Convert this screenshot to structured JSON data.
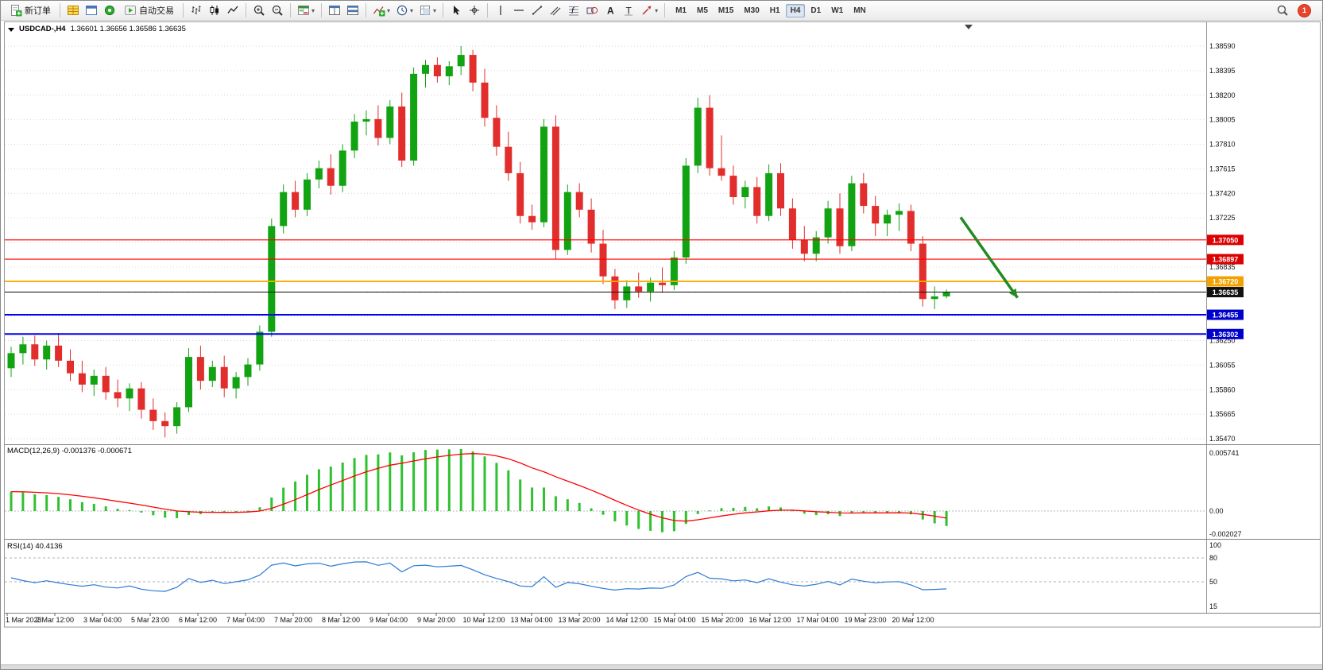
{
  "toolbar": {
    "groups": [
      {
        "items": [
          {
            "name": "new-order",
            "icon": "neworder",
            "label": "新订单"
          }
        ]
      },
      {
        "items": [
          {
            "name": "market-watch",
            "icon": "table-yellow"
          },
          {
            "name": "chart-window",
            "icon": "window-blue"
          },
          {
            "name": "navigator",
            "icon": "circle-green"
          },
          {
            "name": "auto-trading",
            "icon": "play-green",
            "label": "自动交易"
          }
        ]
      },
      {
        "items": [
          {
            "name": "bar-chart",
            "icon": "bars"
          },
          {
            "name": "candlestick-chart",
            "icon": "candles"
          },
          {
            "name": "line-chart",
            "icon": "linechart"
          }
        ]
      },
      {
        "items": [
          {
            "name": "zoom-in",
            "icon": "zoomin"
          },
          {
            "name": "zoom-out",
            "icon": "zoomout"
          }
        ]
      },
      {
        "items": [
          {
            "name": "market-grid",
            "icon": "gridgreen",
            "dropdown": true
          }
        ]
      },
      {
        "items": [
          {
            "name": "tile-windows-horizontal",
            "icon": "tileh"
          },
          {
            "name": "tile-windows-vertical",
            "icon": "tilev"
          }
        ]
      },
      {
        "items": [
          {
            "name": "indicators",
            "icon": "indicator",
            "dropdown": true
          },
          {
            "name": "periods",
            "icon": "clock",
            "dropdown": true
          },
          {
            "name": "templates",
            "icon": "template",
            "dropdown": true
          }
        ]
      },
      {
        "items": [
          {
            "name": "cursor",
            "icon": "cursor"
          },
          {
            "name": "crosshair",
            "icon": "crosshair"
          }
        ]
      },
      {
        "items": [
          {
            "name": "vertical-line",
            "icon": "vline"
          },
          {
            "name": "horizontal-line",
            "icon": "hline"
          },
          {
            "name": "trend-line",
            "icon": "trendline"
          },
          {
            "name": "equidistant-channel",
            "icon": "channel"
          },
          {
            "name": "fibonacci-retracement",
            "icon": "fibo"
          },
          {
            "name": "shapes-tool",
            "icon": "shapes"
          },
          {
            "name": "text-tool",
            "icon": "texta"
          },
          {
            "name": "text-label-tool",
            "icon": "labelt"
          },
          {
            "name": "arrows-tool",
            "icon": "arrowtool",
            "dropdown": true
          }
        ]
      },
      {
        "timeframes": true
      }
    ],
    "timeframes": [
      "M1",
      "M5",
      "M15",
      "M30",
      "H1",
      "H4",
      "D1",
      "W1",
      "MN"
    ],
    "active_timeframe": "H4",
    "notification_count": "1"
  },
  "chart_data": {
    "type": "candlestick",
    "title": "USDCAD-,H4",
    "ohlc_line": "1.36601 1.36656 1.36586 1.36635",
    "ylim": [
      1.3547,
      1.3859
    ],
    "y_tick_step": 0.00195,
    "price_axis_labels": [
      "1.38590",
      "1.38395",
      "1.38200",
      "1.38005",
      "1.37810",
      "1.37615",
      "1.37420",
      "1.37225",
      "1.37030",
      "1.36835",
      "1.36640",
      "1.36445",
      "1.36250",
      "1.36055",
      "1.35860",
      "1.35665",
      "1.35470"
    ],
    "x_labels": [
      "1 Mar 2023",
      "2 Mar 12:00",
      "3 Mar 04:00",
      "5 Mar 23:00",
      "6 Mar 12:00",
      "7 Mar 04:00",
      "7 Mar 20:00",
      "8 Mar 12:00",
      "9 Mar 04:00",
      "9 Mar 20:00",
      "10 Mar 12:00",
      "13 Mar 04:00",
      "13 Mar 20:00",
      "14 Mar 12:00",
      "15 Mar 04:00",
      "15 Mar 20:00",
      "16 Mar 12:00",
      "17 Mar 04:00",
      "19 Mar 23:00",
      "20 Mar 12:00"
    ],
    "candles": [
      [
        1.3603,
        1.362,
        1.3596,
        1.3615
      ],
      [
        1.3615,
        1.3628,
        1.3606,
        1.3622
      ],
      [
        1.3622,
        1.3629,
        1.3605,
        1.361
      ],
      [
        1.361,
        1.3625,
        1.3602,
        1.3621
      ],
      [
        1.3621,
        1.3631,
        1.3604,
        1.3609
      ],
      [
        1.3609,
        1.3618,
        1.3593,
        1.3599
      ],
      [
        1.3599,
        1.3609,
        1.3584,
        1.359
      ],
      [
        1.359,
        1.3602,
        1.3581,
        1.3597
      ],
      [
        1.3597,
        1.3604,
        1.3578,
        1.3584
      ],
      [
        1.3584,
        1.3594,
        1.3572,
        1.3579
      ],
      [
        1.3579,
        1.3591,
        1.3569,
        1.3587
      ],
      [
        1.3587,
        1.3592,
        1.3563,
        1.357
      ],
      [
        1.357,
        1.3579,
        1.3554,
        1.3561
      ],
      [
        1.3561,
        1.3568,
        1.3548,
        1.3557
      ],
      [
        1.3557,
        1.3576,
        1.3551,
        1.3572
      ],
      [
        1.3572,
        1.3619,
        1.3568,
        1.3612
      ],
      [
        1.3612,
        1.3621,
        1.3586,
        1.3593
      ],
      [
        1.3593,
        1.3609,
        1.3588,
        1.3604
      ],
      [
        1.3604,
        1.3613,
        1.358,
        1.3587
      ],
      [
        1.3587,
        1.36,
        1.3579,
        1.3596
      ],
      [
        1.3596,
        1.3611,
        1.3589,
        1.3606
      ],
      [
        1.3606,
        1.3637,
        1.3601,
        1.3632
      ],
      [
        1.3632,
        1.3722,
        1.3628,
        1.3716
      ],
      [
        1.3716,
        1.3749,
        1.371,
        1.3743
      ],
      [
        1.3743,
        1.3752,
        1.3723,
        1.3729
      ],
      [
        1.3729,
        1.3758,
        1.3724,
        1.3753
      ],
      [
        1.3753,
        1.3768,
        1.3746,
        1.3762
      ],
      [
        1.3762,
        1.3773,
        1.3741,
        1.3748
      ],
      [
        1.3748,
        1.3781,
        1.3743,
        1.3776
      ],
      [
        1.3776,
        1.3805,
        1.377,
        1.3799
      ],
      [
        1.3799,
        1.3808,
        1.3788,
        1.3801
      ],
      [
        1.3801,
        1.3812,
        1.378,
        1.3786
      ],
      [
        1.3786,
        1.3816,
        1.3781,
        1.3811
      ],
      [
        1.3811,
        1.3822,
        1.3763,
        1.3768
      ],
      [
        1.3768,
        1.3842,
        1.3764,
        1.3837
      ],
      [
        1.3837,
        1.3848,
        1.3826,
        1.3844
      ],
      [
        1.3844,
        1.385,
        1.383,
        1.3835
      ],
      [
        1.3835,
        1.3847,
        1.3828,
        1.3843
      ],
      [
        1.3843,
        1.3859,
        1.3836,
        1.3852
      ],
      [
        1.3852,
        1.3856,
        1.3823,
        1.383
      ],
      [
        1.383,
        1.3841,
        1.3795,
        1.3802
      ],
      [
        1.3802,
        1.3812,
        1.3772,
        1.3779
      ],
      [
        1.3779,
        1.3791,
        1.3752,
        1.3758
      ],
      [
        1.3758,
        1.3767,
        1.3718,
        1.3724
      ],
      [
        1.3724,
        1.3733,
        1.3713,
        1.3719
      ],
      [
        1.3719,
        1.3801,
        1.3715,
        1.3795
      ],
      [
        1.3795,
        1.3804,
        1.369,
        1.3697
      ],
      [
        1.3697,
        1.3749,
        1.3693,
        1.3743
      ],
      [
        1.3743,
        1.375,
        1.3723,
        1.3729
      ],
      [
        1.3729,
        1.3738,
        1.3695,
        1.3702
      ],
      [
        1.3702,
        1.3713,
        1.367,
        1.3676
      ],
      [
        1.3676,
        1.3682,
        1.365,
        1.3657
      ],
      [
        1.3657,
        1.3673,
        1.3651,
        1.3668
      ],
      [
        1.3668,
        1.3679,
        1.3659,
        1.3664
      ],
      [
        1.3664,
        1.3675,
        1.3656,
        1.3671
      ],
      [
        1.3671,
        1.3683,
        1.3663,
        1.3669
      ],
      [
        1.3669,
        1.3696,
        1.3665,
        1.3691
      ],
      [
        1.3691,
        1.377,
        1.3686,
        1.3764
      ],
      [
        1.3764,
        1.3818,
        1.3758,
        1.381
      ],
      [
        1.381,
        1.382,
        1.3756,
        1.3762
      ],
      [
        1.3762,
        1.3788,
        1.3752,
        1.3756
      ],
      [
        1.3756,
        1.3764,
        1.3733,
        1.3739
      ],
      [
        1.3739,
        1.3752,
        1.373,
        1.3747
      ],
      [
        1.3747,
        1.3755,
        1.3718,
        1.3724
      ],
      [
        1.3724,
        1.3765,
        1.372,
        1.3758
      ],
      [
        1.3758,
        1.3766,
        1.3724,
        1.373
      ],
      [
        1.373,
        1.3738,
        1.3698,
        1.3705
      ],
      [
        1.3705,
        1.3716,
        1.3688,
        1.3694
      ],
      [
        1.3694,
        1.3712,
        1.3688,
        1.3707
      ],
      [
        1.3707,
        1.3736,
        1.3702,
        1.373
      ],
      [
        1.373,
        1.3742,
        1.3694,
        1.37
      ],
      [
        1.37,
        1.3756,
        1.3696,
        1.375
      ],
      [
        1.375,
        1.3758,
        1.3726,
        1.3732
      ],
      [
        1.3732,
        1.374,
        1.3708,
        1.3718
      ],
      [
        1.3718,
        1.3729,
        1.3708,
        1.3725
      ],
      [
        1.3725,
        1.3734,
        1.3712,
        1.3728
      ],
      [
        1.3728,
        1.3733,
        1.3696,
        1.3702
      ],
      [
        1.3702,
        1.3708,
        1.3652,
        1.3658
      ],
      [
        1.3658,
        1.3668,
        1.365,
        1.36601
      ],
      [
        1.36601,
        1.36656,
        1.36586,
        1.36635
      ]
    ],
    "hlines": [
      {
        "price": 1.3705,
        "label": "1.37050",
        "color": "#ff0000",
        "tag_color": "#dd0000",
        "width": 1.2
      },
      {
        "price": 1.36897,
        "label": "1.36897",
        "color": "#ff0000",
        "tag_color": "#dd0000",
        "width": 1.2
      },
      {
        "price": 1.3672,
        "label": "1.36720",
        "color": "#ffaa00",
        "tag_color": "#f2a100",
        "width": 1.8
      },
      {
        "price": 1.36635,
        "label": "1.36635",
        "color": "#111111",
        "tag_color": "#111111",
        "width": 1.0,
        "current": true
      },
      {
        "price": 1.36455,
        "label": "1.36455",
        "color": "#0000ee",
        "tag_color": "#0000cc",
        "width": 2.0
      },
      {
        "price": 1.36302,
        "label": "1.36302",
        "color": "#0000ee",
        "tag_color": "#0000cc",
        "width": 2.0
      }
    ],
    "trend_arrow": {
      "from_bar": 80.2,
      "from_price": 1.3723,
      "to_bar": 85.0,
      "to_price": 1.3659,
      "color": "#228b22",
      "width": 3.5
    },
    "macd": {
      "label": "MACD(12,26,9) -0.001376 -0.000671",
      "fast": 12,
      "slow": 26,
      "signal": 9,
      "values": [
        "-0.001376",
        "-0.000671"
      ],
      "axis_labels": [
        "0.005741",
        "0.00",
        "-0.002027"
      ]
    },
    "rsi": {
      "label": "RSI(14) 40.4136",
      "period": 14,
      "value": "40.4136",
      "axis_labels": [
        "100",
        "80",
        "50",
        "15"
      ],
      "levels": [
        80,
        50
      ]
    },
    "colors": {
      "bull": "#12a312",
      "bear": "#e22d2d",
      "macd_histogram": "#2ec22e",
      "macd_signal": "#ff0000",
      "rsi_line": "#2b7cd3",
      "grid": "#d6d6d6"
    }
  }
}
